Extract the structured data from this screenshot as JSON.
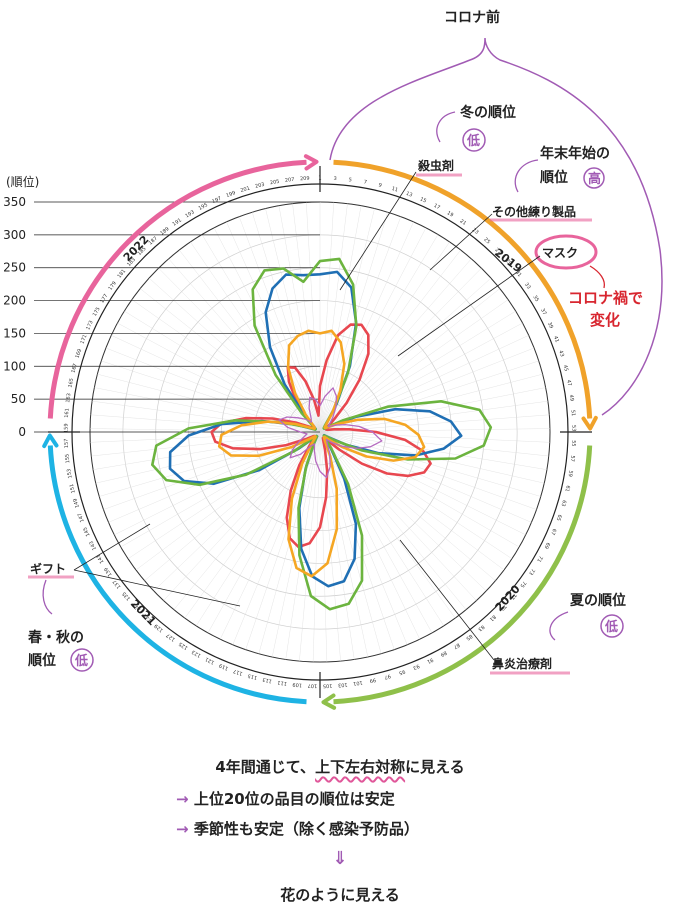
{
  "chart_data": {
    "type": "radar",
    "title": "",
    "angular_ticks": [
      1,
      3,
      5,
      7,
      9,
      11,
      13,
      15,
      17,
      19,
      21,
      23,
      25,
      27,
      29,
      31,
      33,
      35,
      37,
      39,
      41,
      43,
      45,
      47,
      49,
      51,
      53,
      55,
      57,
      59,
      61,
      63,
      65,
      67,
      69,
      71,
      73,
      75,
      77,
      79,
      81,
      83,
      85,
      87,
      89,
      91,
      93,
      95,
      97,
      99,
      101,
      103,
      105,
      107,
      109,
      111,
      113,
      115,
      117,
      119,
      121,
      123,
      125,
      127,
      129,
      131,
      133,
      135,
      137,
      139,
      141,
      143,
      145,
      147,
      149,
      151,
      153,
      155,
      157,
      159,
      161,
      163,
      165,
      167,
      169,
      171,
      173,
      175,
      177,
      179,
      181,
      183,
      185,
      187,
      189,
      191,
      193,
      195,
      197,
      199,
      201,
      203,
      205,
      207,
      209
    ],
    "angular_range": [
      1,
      209
    ],
    "radial_axis": {
      "label": "(順位)",
      "ticks": [
        0,
        50,
        100,
        150,
        200,
        250,
        300,
        350
      ],
      "range": [
        0,
        350
      ]
    },
    "year_labels": [
      "2019",
      "2020",
      "2021",
      "2022"
    ],
    "season_arcs": [
      {
        "name": "winter",
        "color": "#e8649c"
      },
      {
        "name": "autumn_end",
        "color": "#f0a22a"
      },
      {
        "name": "summer",
        "color": "#8fc04a"
      },
      {
        "name": "spring",
        "color": "#1eb3e4"
      }
    ],
    "series": [
      {
        "name": "殺虫剤",
        "color": "#e8474f",
        "values": [
          70,
          110,
          150,
          170,
          175,
          165,
          140,
          100,
          60,
          30,
          18,
          12,
          10,
          10,
          12,
          22,
          45,
          85,
          130,
          160,
          175,
          170,
          150,
          120,
          80,
          40,
          20,
          12,
          10,
          10,
          14,
          28,
          60,
          100,
          145,
          170,
          178,
          168,
          140,
          100,
          60,
          28,
          15,
          10,
          10,
          12,
          25,
          55,
          95,
          135,
          160,
          165,
          150,
          115,
          75,
          40,
          18,
          10,
          10,
          12,
          30,
          60,
          90,
          110,
          105,
          80,
          50,
          25
        ]
      },
      {
        "name": "その他練り製品",
        "color": "#1f6fb4",
        "values": [
          240,
          245,
          225,
          175,
          110,
          50,
          18,
          10,
          8,
          10,
          20,
          60,
          120,
          170,
          200,
          215,
          190,
          150,
          95,
          45,
          15,
          8,
          8,
          12,
          30,
          80,
          150,
          200,
          230,
          235,
          220,
          180,
          120,
          60,
          20,
          8,
          8,
          12,
          40,
          110,
          180,
          220,
          235,
          230,
          200,
          150,
          90,
          40,
          12,
          8,
          8,
          12,
          35,
          90,
          150,
          200,
          230,
          245,
          240
        ]
      },
      {
        "name": "鼻炎治療剤",
        "color": "#6cb43f",
        "values": [
          260,
          265,
          230,
          170,
          100,
          40,
          12,
          8,
          8,
          14,
          40,
          110,
          190,
          245,
          260,
          250,
          210,
          140,
          70,
          25,
          10,
          8,
          10,
          30,
          90,
          170,
          235,
          265,
          270,
          250,
          190,
          120,
          55,
          18,
          8,
          8,
          14,
          50,
          130,
          200,
          245,
          260,
          250,
          200,
          130,
          60,
          20,
          8,
          8,
          12,
          40,
          110,
          190,
          240,
          260,
          255,
          230
        ]
      },
      {
        "name": "マスク",
        "color": "#f5a623",
        "values": [
          150,
          155,
          140,
          110,
          70,
          35,
          15,
          10,
          10,
          14,
          30,
          60,
          100,
          130,
          150,
          160,
          150,
          120,
          80,
          40,
          18,
          10,
          10,
          15,
          40,
          90,
          150,
          200,
          220,
          210,
          170,
          110,
          55,
          20,
          10,
          10,
          18,
          50,
          100,
          140,
          155,
          150,
          120,
          80,
          40,
          15,
          10,
          10,
          14,
          35,
          70,
          110,
          140,
          150,
          155
        ]
      },
      {
        "name": "ギフト",
        "color": "#b56ac0",
        "values": [
          40,
          55,
          70,
          60,
          45,
          30,
          20,
          15,
          25,
          40,
          60,
          80,
          95,
          80,
          60,
          40,
          25,
          15,
          20,
          35,
          55,
          70,
          60,
          45,
          30,
          20,
          25,
          45,
          60,
          50,
          35,
          25,
          20,
          30,
          50,
          65,
          55,
          40,
          30,
          20,
          25,
          40,
          55,
          50
        ]
      }
    ]
  },
  "annotations": {
    "pre_covid": "コロナ前",
    "winter_rank": "冬の順位",
    "winter_mark": "低",
    "insecticide": "殺虫剤",
    "new_year_rank_line1": "年末年始の",
    "new_year_rank_line2": "順位",
    "new_year_mark": "高",
    "other_fish": "その他練り製品",
    "mask": "マスク",
    "covid_change_line1": "コロナ禍で",
    "covid_change_line2": "変化",
    "summer_rank": "夏の順位",
    "summer_mark": "低",
    "rhinitis": "鼻炎治療剤",
    "gift": "ギフト",
    "spring_autumn_line1": "春・秋の",
    "spring_autumn_line2": "順位",
    "spring_autumn_mark": "低"
  },
  "summary": {
    "line1_a": "4年間通じて、",
    "line1_b": "上下左右対称",
    "line1_c": "に見える",
    "arrow": "→",
    "line2": "上位20位の品目の順位は安定",
    "line3": "季節性も安定（除く感染予防品）",
    "down_arrow": "⇓",
    "line4": "花のように見える"
  }
}
